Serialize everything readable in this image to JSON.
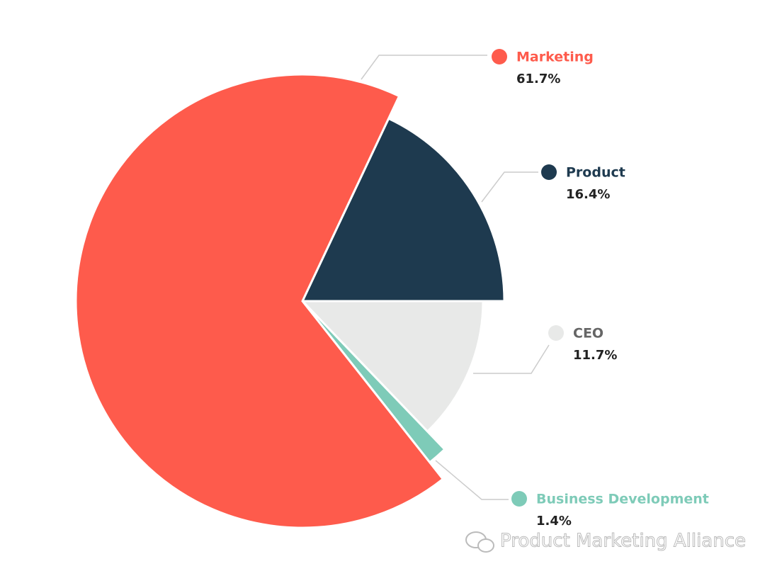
{
  "chart_data": {
    "type": "pie",
    "categories": [
      "Product",
      "CEO",
      "Business Development",
      "Marketing"
    ],
    "values": [
      16.4,
      11.7,
      1.4,
      61.7
    ],
    "value_labels": [
      "16.4%",
      "11.7%",
      "1.4%",
      "61.7%"
    ],
    "colors": [
      "#1e3a4f",
      "#e8e9e8",
      "#7ecbb8",
      "#fe5b4c"
    ]
  },
  "watermark": "Product Marketing Alliance"
}
